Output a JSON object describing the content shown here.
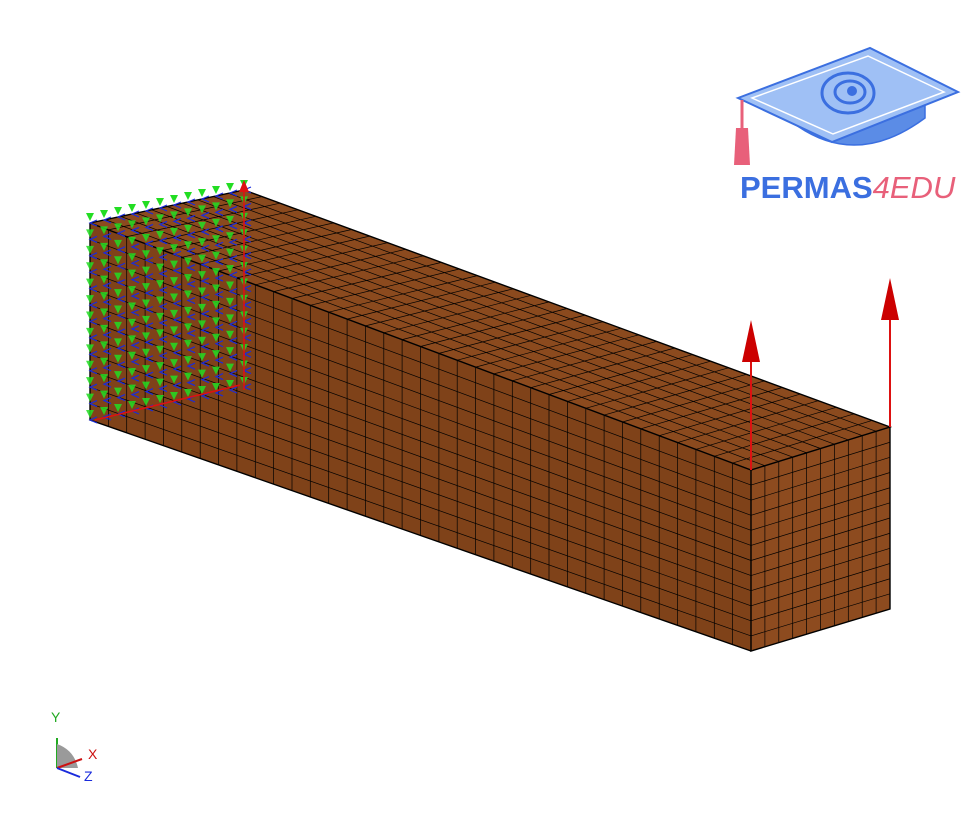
{
  "logo": {
    "brand_main": "PERMAS",
    "brand_suffix": "4EDU",
    "colors": {
      "main": "#3b6fe0",
      "suffix": "#e8607a",
      "cap": "#6f9bf0",
      "tassel": "#e8607a"
    }
  },
  "model": {
    "element_color": "#8b4a1e",
    "edge_color": "#000000",
    "mesh": {
      "length_divisions": 36,
      "width_divisions": 10,
      "height_divisions": 12
    },
    "boundary_conditions": {
      "color_y": "#22dd22",
      "color_x": "#dd1111",
      "color_z": "#1a2bdc"
    },
    "loads": {
      "color": "#dd1111",
      "direction": "+Y",
      "count": 2
    }
  },
  "triad": {
    "y_label": "Y",
    "x_label": "X",
    "z_label": "Z",
    "colors": {
      "y": "#22aa22",
      "x": "#cc1111",
      "z": "#1a2bdc"
    }
  }
}
